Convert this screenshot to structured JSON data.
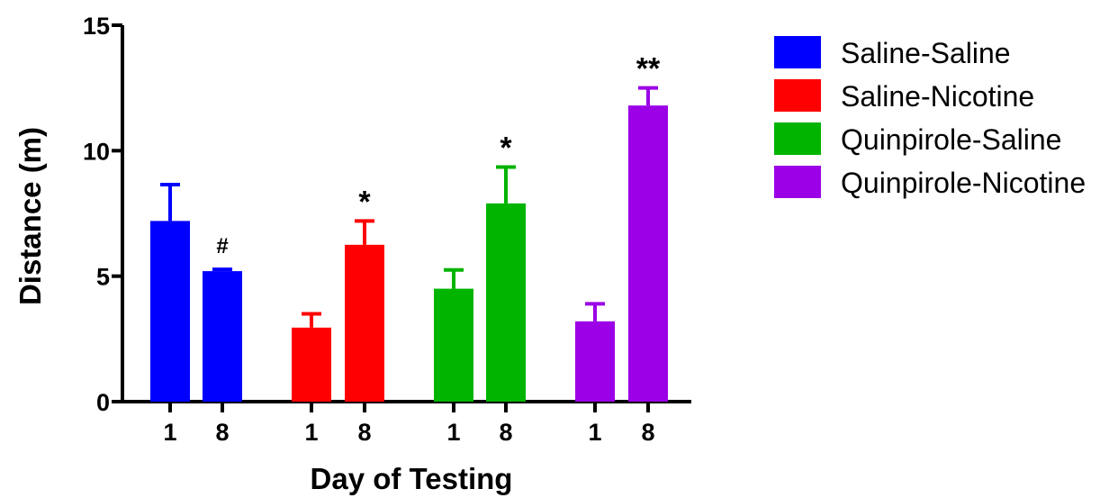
{
  "chart_data": {
    "type": "bar",
    "xlabel": "Day of Testing",
    "ylabel": "Distance (m)",
    "ylim": [
      0,
      15
    ],
    "yticks": [
      0,
      5,
      10,
      15
    ],
    "grid": false,
    "legend_position": "right",
    "groups": [
      {
        "name": "Saline-Saline",
        "color": "#0000ff",
        "bars": [
          {
            "day": "1",
            "value": 7.2,
            "error": 1.45,
            "annotation": ""
          },
          {
            "day": "8",
            "value": 5.2,
            "error": 0.07,
            "annotation": "#"
          }
        ]
      },
      {
        "name": "Saline-Nicotine",
        "color": "#ff0000",
        "bars": [
          {
            "day": "1",
            "value": 2.95,
            "error": 0.55,
            "annotation": ""
          },
          {
            "day": "8",
            "value": 6.25,
            "error": 0.95,
            "annotation": "*"
          }
        ]
      },
      {
        "name": "Quinpirole-Saline",
        "color": "#00b400",
        "bars": [
          {
            "day": "1",
            "value": 4.5,
            "error": 0.75,
            "annotation": ""
          },
          {
            "day": "8",
            "value": 7.9,
            "error": 1.45,
            "annotation": "*"
          }
        ]
      },
      {
        "name": "Quinpirole-Nicotine",
        "color": "#9b00e6",
        "bars": [
          {
            "day": "1",
            "value": 3.2,
            "error": 0.7,
            "annotation": ""
          },
          {
            "day": "8",
            "value": 11.8,
            "error": 0.7,
            "annotation": "**"
          }
        ]
      }
    ]
  }
}
